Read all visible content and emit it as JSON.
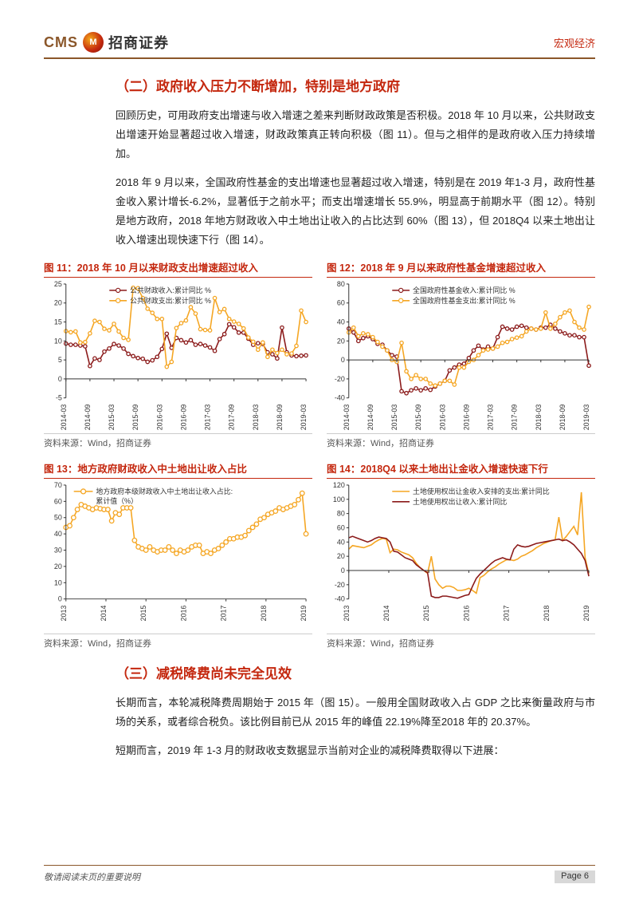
{
  "header": {
    "company_en": "CMS",
    "logo_glyph": "M",
    "company_zh": "招商证券",
    "doc_category": "宏观经济",
    "logo_bg_outer": "#7a1808",
    "logo_bg_inner": "#f4a71a"
  },
  "border_color": "#8b572a",
  "accent_color": "#c4270e",
  "sections": {
    "s2_title": "（二）政府收入压力不断增加，特别是地方政府",
    "p1": "回顾历史，可用政府支出增速与收入增速之差来判断财政政策是否积极。2018 年 10 月以来，公共财政支出增速开始显著超过收入增速，财政政策真正转向积极（图 11）。但与之相伴的是政府收入压力持续增加。",
    "p2": "2018 年 9 月以来，全国政府性基金的支出增速也显著超过收入增速，特别是在 2019 年1-3 月，政府性基金收入累计增长-6.2%，显著低于之前水平；而支出增速增长 55.9%，明显高于前期水平（图 12）。特别是地方政府，2018 年地方财政收入中土地出让收入的占比达到 60%（图 13），但 2018Q4 以来土地出让收入增速出现快速下行（图 14）。",
    "s3_title": "（三）减税降费尚未完全见效",
    "p3": "长期而言，本轮减税降费周期始于 2015 年（图 15）。一般用全国财政收入占 GDP 之比来衡量政府与市场的关系，或者综合税负。该比例目前已从 2015 年的峰值 22.19%降至2018 年的 20.37%。",
    "p4": "短期而言，2019 年 1-3 月的财政收支数据显示当前对企业的减税降费取得以下进展："
  },
  "charts": {
    "c11": {
      "title": "图 11：2018 年 10 月以来财政支出增速超过收入",
      "source": "资料来源：Wind，招商证券",
      "type": "line-marker",
      "legends": [
        "公共财政收入:累计同比 %",
        "公共财政支出:累计同比 %"
      ],
      "colors": [
        "#8b1a1a",
        "#f5a623"
      ],
      "ylim": [
        -5,
        25
      ],
      "yticks": [
        -5,
        0,
        5,
        10,
        15,
        20,
        25
      ],
      "xticks": [
        "2014-03",
        "2014-09",
        "2015-03",
        "2015-09",
        "2016-03",
        "2016-09",
        "2017-03",
        "2017-09",
        "2018-03",
        "2018-09",
        "2019-03"
      ],
      "background_color": "#ffffff",
      "grid": false,
      "marker": "circle",
      "marker_size": 2.2,
      "series1": [
        9.3,
        9,
        9,
        8.8,
        8.6,
        3.4,
        5.4,
        5,
        7.2,
        8,
        9.2,
        8.8,
        8,
        6.6,
        6,
        5.5,
        5.3,
        4.5,
        4.9,
        5.8,
        7.9,
        11.9,
        8.2,
        10.8,
        10.2,
        9.6,
        10.2,
        9,
        9.2,
        8.8,
        8.3,
        7.4,
        10.5,
        11.8,
        14.4,
        13.6,
        12.2,
        12.2,
        10.6,
        9,
        9.4,
        9.2,
        7,
        6.5,
        5.4,
        13.5,
        7,
        6.2,
        6,
        6.1,
        6.2
      ],
      "series2": [
        12.6,
        12.3,
        12.5,
        9.6,
        9.7,
        12,
        15.3,
        15,
        13.2,
        12.8,
        14.5,
        12.5,
        10.8,
        10.3,
        24,
        23.9,
        21.3,
        18.5,
        17.4,
        15.8,
        15.8,
        3.2,
        4.5,
        13.4,
        14.7,
        15.4,
        18.9,
        17.2,
        13.1,
        12.9,
        12.8,
        21.3,
        17.6,
        18.4,
        15.8,
        15.1,
        14.5,
        13.3,
        10.9,
        9.8,
        7.7,
        9.6,
        5.8,
        7.7,
        6.8,
        7.7,
        6.5,
        6.7,
        8.7,
        18,
        15
      ],
      "line_width": 1.6
    },
    "c12": {
      "title": "图 12：2018 年 9 月以来政府性基金增速超过收入",
      "source": "资料来源：Wind，招商证券",
      "type": "line-marker",
      "legends": [
        "全国政府性基金收入:累计同比 %",
        "全国政府性基金支出:累计同比 %"
      ],
      "colors": [
        "#8b1a1a",
        "#f5a623"
      ],
      "ylim": [
        -40,
        80
      ],
      "yticks": [
        -40,
        -20,
        0,
        20,
        40,
        60,
        80
      ],
      "xticks": [
        "2014-03",
        "2014-09",
        "2015-03",
        "2015-09",
        "2016-03",
        "2016-09",
        "2017-03",
        "2017-09",
        "2018-03",
        "2018-09",
        "2019-03"
      ],
      "background_color": "#ffffff",
      "marker": "circle",
      "marker_size": 2.2,
      "series1": [
        33,
        29,
        20,
        23,
        25,
        22,
        17,
        16,
        10,
        5,
        3.5,
        -33,
        -35,
        -32,
        -30,
        -32,
        -30,
        -31.5,
        -28,
        -25,
        -22,
        -11,
        -8,
        -5,
        -4,
        2,
        10,
        15,
        11,
        14,
        12,
        24,
        35,
        33,
        32,
        35,
        36,
        34,
        33,
        32,
        34,
        34,
        37,
        33,
        30,
        28,
        26,
        26,
        24,
        24,
        -6
      ],
      "series2": [
        29,
        34,
        25,
        28,
        27,
        24,
        19,
        14,
        10,
        0,
        -2,
        18,
        -12,
        -20,
        -16,
        -20,
        -20,
        -25,
        -27,
        -25,
        -22,
        -22,
        -26,
        -8,
        -8,
        -2,
        0,
        5,
        10,
        11,
        12,
        14,
        18,
        19,
        22,
        23.5,
        25,
        30,
        33,
        32,
        33,
        50,
        33,
        38,
        45,
        50,
        52,
        40,
        34,
        32,
        55.9
      ],
      "line_width": 1.6
    },
    "c13": {
      "title": "图 13：地方政府财政收入中土地出让收入占比",
      "source": "资料来源：Wind，招商证券",
      "type": "line-marker",
      "legends": [
        "地方政府本级财政收入中土地出让收入占比:",
        "累计值（%）"
      ],
      "colors": [
        "#f5a623"
      ],
      "ylim": [
        0,
        70
      ],
      "yticks": [
        0,
        10,
        20,
        30,
        40,
        50,
        60,
        70
      ],
      "xticks": [
        "2013",
        "2014",
        "2015",
        "2016",
        "2017",
        "2018",
        "2019"
      ],
      "background_color": "#ffffff",
      "marker": "circle",
      "marker_size": 2.8,
      "series1": [
        44,
        45,
        50,
        55,
        58,
        57,
        56,
        55,
        56,
        55.5,
        55,
        55,
        48,
        53,
        52,
        56,
        56,
        56,
        36,
        32,
        31,
        30,
        32,
        30,
        29,
        30,
        30,
        32,
        30,
        28,
        30,
        29,
        30,
        32,
        33,
        33,
        28,
        29,
        28,
        30,
        31,
        33,
        35,
        37,
        37,
        38,
        38,
        39,
        42,
        44,
        46,
        49,
        50,
        52,
        53,
        54,
        56,
        55,
        56,
        57,
        58,
        61,
        65,
        40
      ],
      "line_width": 1.6
    },
    "c14": {
      "title": "图 14：2018Q4 以来土地出让金收入增速快速下行",
      "source": "资料来源：Wind，招商证券",
      "type": "line",
      "legends": [
        "土地使用权出让金收入安排的支出:累计同比",
        "土地使用权出让收入:累计同比"
      ],
      "colors": [
        "#f5a623",
        "#8b1a1a"
      ],
      "ylim": [
        -40,
        120
      ],
      "yticks": [
        -40,
        -20,
        0,
        20,
        40,
        60,
        80,
        100,
        120
      ],
      "xticks": [
        "2013",
        "2014",
        "2015",
        "2016",
        "2017",
        "2018",
        "2019"
      ],
      "background_color": "#ffffff",
      "series1": [
        30,
        35,
        34,
        33,
        32,
        34,
        36,
        40,
        43,
        45,
        44,
        25,
        30,
        29,
        26,
        24,
        22,
        18,
        10,
        4,
        0,
        -4,
        20,
        -12,
        -20,
        -25,
        -22,
        -22,
        -24,
        -28,
        -28,
        -27,
        -25,
        -28,
        -32,
        -10,
        -7,
        -2,
        2,
        5,
        9,
        12,
        15,
        15,
        14,
        16,
        20,
        22,
        25,
        28,
        32,
        35,
        38,
        40,
        42,
        43,
        75,
        42,
        48,
        55,
        62,
        50,
        110,
        18,
        -5
      ],
      "series2": [
        46,
        48,
        46,
        44,
        42,
        40,
        42,
        45,
        47,
        46,
        45,
        40,
        27,
        26,
        22,
        18,
        16,
        14,
        8,
        4,
        0,
        -3,
        -36,
        -38,
        -38,
        -36,
        -36,
        -37,
        -38,
        -39,
        -37,
        -35,
        -34,
        -22,
        -11,
        -5,
        0,
        5,
        10,
        14,
        16,
        18,
        16,
        15,
        30,
        36,
        34,
        33,
        34,
        36,
        38,
        39,
        40,
        41,
        42,
        43,
        44,
        42,
        43,
        40,
        36,
        30,
        24,
        14,
        -8
      ],
      "line_width": 1.6
    }
  },
  "footer": {
    "disclaimer": "敬请阅读末页的重要说明",
    "page_label": "Page 6"
  }
}
